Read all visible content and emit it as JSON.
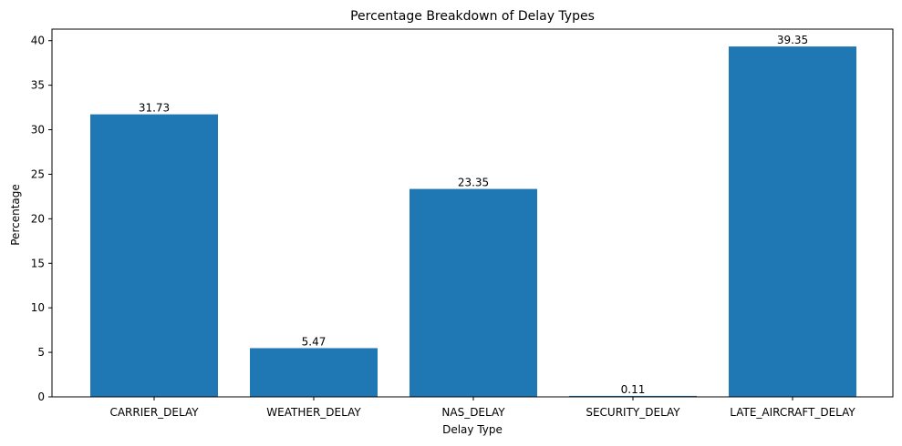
{
  "chart_data": {
    "type": "bar",
    "title": "Percentage Breakdown of Delay Types",
    "xlabel": "Delay Type",
    "ylabel": "Percentage",
    "categories": [
      "CARRIER_DELAY",
      "WEATHER_DELAY",
      "NAS_DELAY",
      "SECURITY_DELAY",
      "LATE_AIRCRAFT_DELAY"
    ],
    "values": [
      31.73,
      5.47,
      23.35,
      0.11,
      39.35
    ],
    "data_labels": [
      "31.73",
      "5.47",
      "23.35",
      "0.11",
      "39.35"
    ],
    "ylim": [
      0,
      41.3
    ],
    "yticks": [
      0,
      5,
      10,
      15,
      20,
      25,
      30,
      35,
      40
    ],
    "grid": false,
    "bar_color": "#1f77b4"
  }
}
